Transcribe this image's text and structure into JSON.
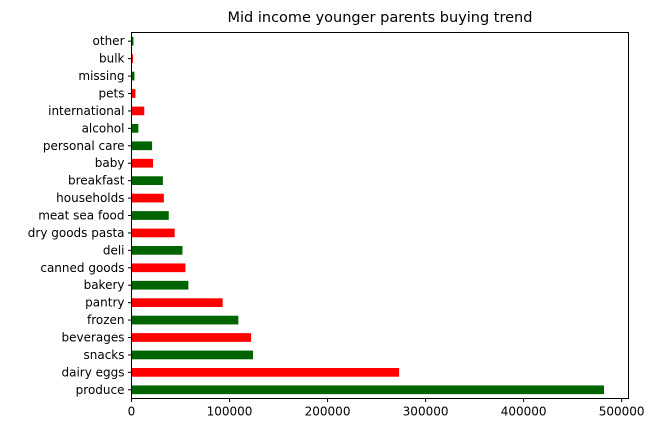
{
  "chart_data": {
    "type": "bar",
    "orientation": "horizontal",
    "title": "Mid income younger parents buying trend",
    "xlabel": "",
    "ylabel": "",
    "categories": [
      "produce",
      "dairy eggs",
      "snacks",
      "beverages",
      "frozen",
      "pantry",
      "bakery",
      "canned goods",
      "deli",
      "dry goods pasta",
      "meat sea food",
      "households",
      "breakfast",
      "baby",
      "personal care",
      "alcohol",
      "international",
      "pets",
      "missing",
      "bulk",
      "other"
    ],
    "values": [
      482000,
      273000,
      124000,
      122000,
      109000,
      93000,
      58000,
      55000,
      52000,
      44000,
      38000,
      33000,
      32000,
      22000,
      21000,
      7000,
      13000,
      4000,
      3000,
      1500,
      2000
    ],
    "bar_colors": [
      "#006400",
      "#ff0000",
      "#006400",
      "#ff0000",
      "#006400",
      "#ff0000",
      "#006400",
      "#ff0000",
      "#006400",
      "#ff0000",
      "#006400",
      "#ff0000",
      "#006400",
      "#ff0000",
      "#006400",
      "#006400",
      "#ff0000",
      "#ff0000",
      "#006400",
      "#ff0000",
      "#006400"
    ],
    "xlim": [
      0,
      507000
    ],
    "xticks": [
      0,
      100000,
      200000,
      300000,
      400000,
      500000
    ],
    "xtick_labels": [
      "0",
      "100000",
      "200000",
      "300000",
      "400000",
      "500000"
    ],
    "grid": false,
    "legend": false
  }
}
